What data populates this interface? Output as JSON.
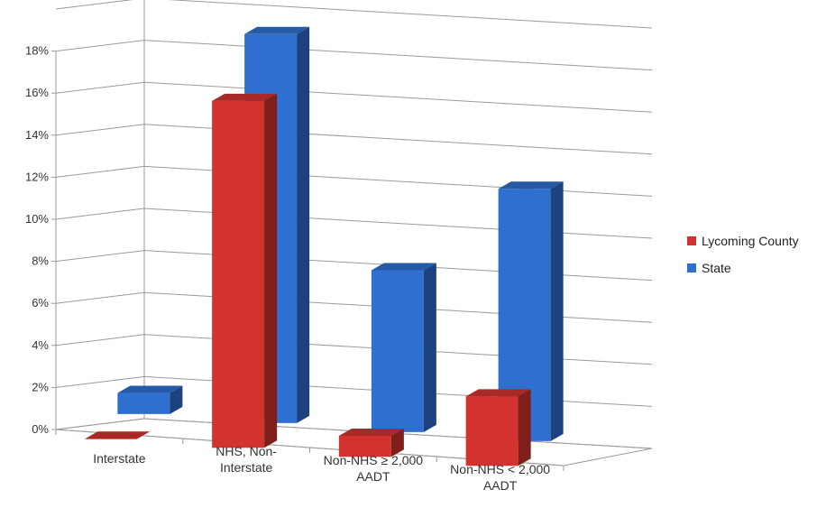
{
  "chart_data": {
    "type": "bar",
    "title": "",
    "xlabel": "",
    "ylabel": "",
    "categories": [
      "Interstate",
      "NHS, Non-Interstate",
      "Non-NHS ≥ 2,000 AADT",
      "Non-NHS < 2,000 AADT"
    ],
    "category_lines": [
      [
        "Interstate"
      ],
      [
        "NHS, Non-",
        "Interstate"
      ],
      [
        "Non-NHS ≥ 2,000",
        "AADT"
      ],
      [
        "Non-NHS < 2,000",
        "AADT"
      ]
    ],
    "series": [
      {
        "name": "Lycoming County",
        "values": [
          0.0,
          16.5,
          1.0,
          3.3
        ],
        "color": "#d2332e"
      },
      {
        "name": "State",
        "values": [
          1.0,
          18.5,
          7.7,
          12.0
        ],
        "color": "#2f6fd0"
      }
    ],
    "y_ticks": [
      "0%",
      "2%",
      "4%",
      "6%",
      "8%",
      "10%",
      "12%",
      "14%",
      "16%",
      "18%"
    ],
    "ylim": [
      0,
      20
    ],
    "grid": true,
    "legend_position": "right",
    "style": "3d-clustered-column"
  }
}
